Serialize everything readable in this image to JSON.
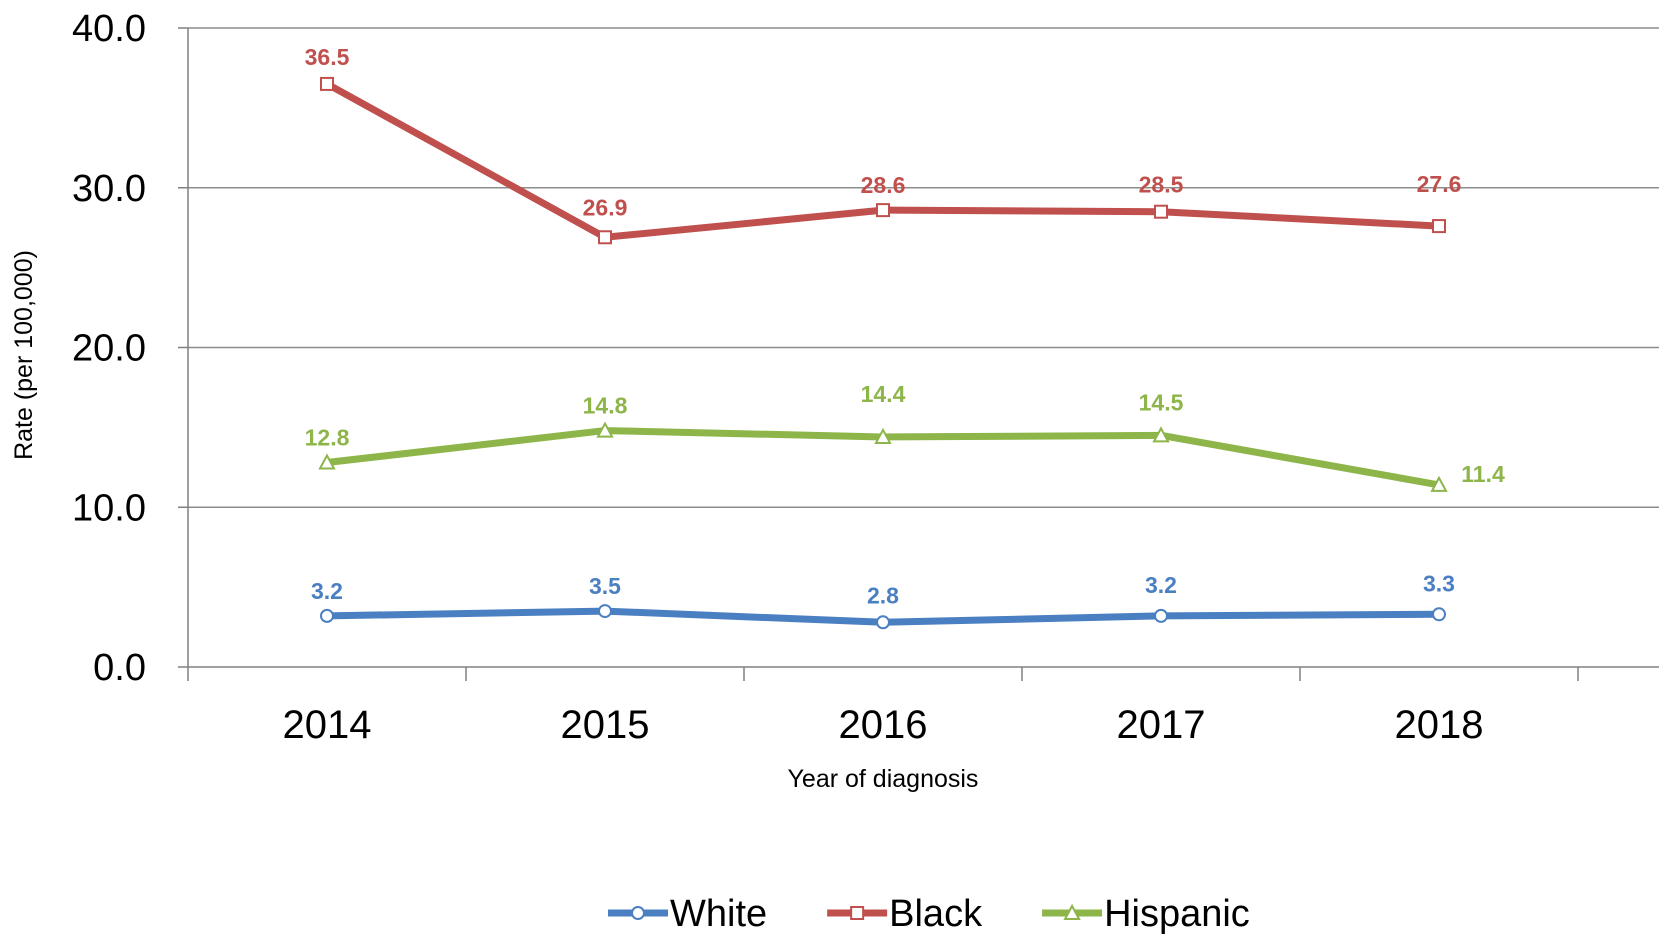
{
  "chart_data": {
    "type": "line",
    "title": "",
    "xlabel": "Year of diagnosis",
    "ylabel": "Rate (per 100,000)",
    "categories": [
      "2014",
      "2015",
      "2016",
      "2017",
      "2018"
    ],
    "ylim": [
      0,
      40
    ],
    "yticks": [
      "0.0",
      "10.0",
      "20.0",
      "30.0",
      "40.0"
    ],
    "ytick_values": [
      0,
      10,
      20,
      30,
      40
    ],
    "grid": true,
    "legend_position": "bottom",
    "series": [
      {
        "name": "White",
        "values": [
          3.2,
          3.5,
          2.8,
          3.2,
          3.3
        ],
        "labels": [
          "3.2",
          "3.5",
          "2.8",
          "3.2",
          "3.3"
        ],
        "color": "#4a7fc1",
        "marker": "circle"
      },
      {
        "name": "Black",
        "values": [
          36.5,
          26.9,
          28.6,
          28.5,
          27.6
        ],
        "labels": [
          "36.5",
          "26.9",
          "28.6",
          "28.5",
          "27.6"
        ],
        "color": "#c0504d",
        "marker": "square"
      },
      {
        "name": "Hispanic",
        "values": [
          12.8,
          14.8,
          14.4,
          14.5,
          11.4
        ],
        "labels": [
          "12.8",
          "14.8",
          "14.4",
          "14.5",
          "11.4"
        ],
        "color": "#8db54a",
        "marker": "triangle"
      }
    ]
  }
}
